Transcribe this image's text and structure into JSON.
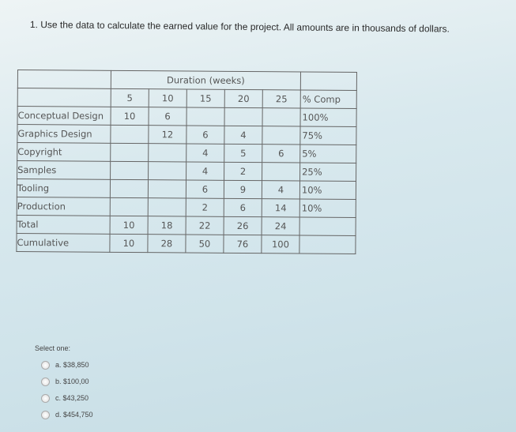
{
  "question": {
    "text": "1. Use the data to calculate the earned value for the project. All amounts are in thousands of dollars."
  },
  "table": {
    "header": "Duration (weeks)",
    "columns": [
      "5",
      "10",
      "15",
      "20",
      "25"
    ],
    "pct_header": "% Comp",
    "rows": [
      {
        "label": "Conceptual Design",
        "cells": [
          "10",
          "6",
          "",
          "",
          ""
        ],
        "pct": "100%"
      },
      {
        "label": "Graphics Design",
        "cells": [
          "",
          "12",
          "6",
          "4",
          ""
        ],
        "pct": "75%"
      },
      {
        "label": "Copyright",
        "cells": [
          "",
          "",
          "4",
          "5",
          "6"
        ],
        "pct": "5%"
      },
      {
        "label": "Samples",
        "cells": [
          "",
          "",
          "4",
          "2",
          ""
        ],
        "pct": "25%"
      },
      {
        "label": "Tooling",
        "cells": [
          "",
          "",
          "6",
          "9",
          "4"
        ],
        "pct": "10%"
      },
      {
        "label": "Production",
        "cells": [
          "",
          "",
          "2",
          "6",
          "14"
        ],
        "pct": "10%"
      },
      {
        "label": "Total",
        "cells": [
          "10",
          "18",
          "22",
          "26",
          "24"
        ],
        "pct": ""
      },
      {
        "label": "Cumulative",
        "cells": [
          "10",
          "28",
          "50",
          "76",
          "100"
        ],
        "pct": ""
      }
    ]
  },
  "answers": {
    "prompt": "Select one:",
    "options": [
      "a. $38,850",
      "b. $100,00",
      "c. $43,250",
      "d. $454,750"
    ]
  }
}
